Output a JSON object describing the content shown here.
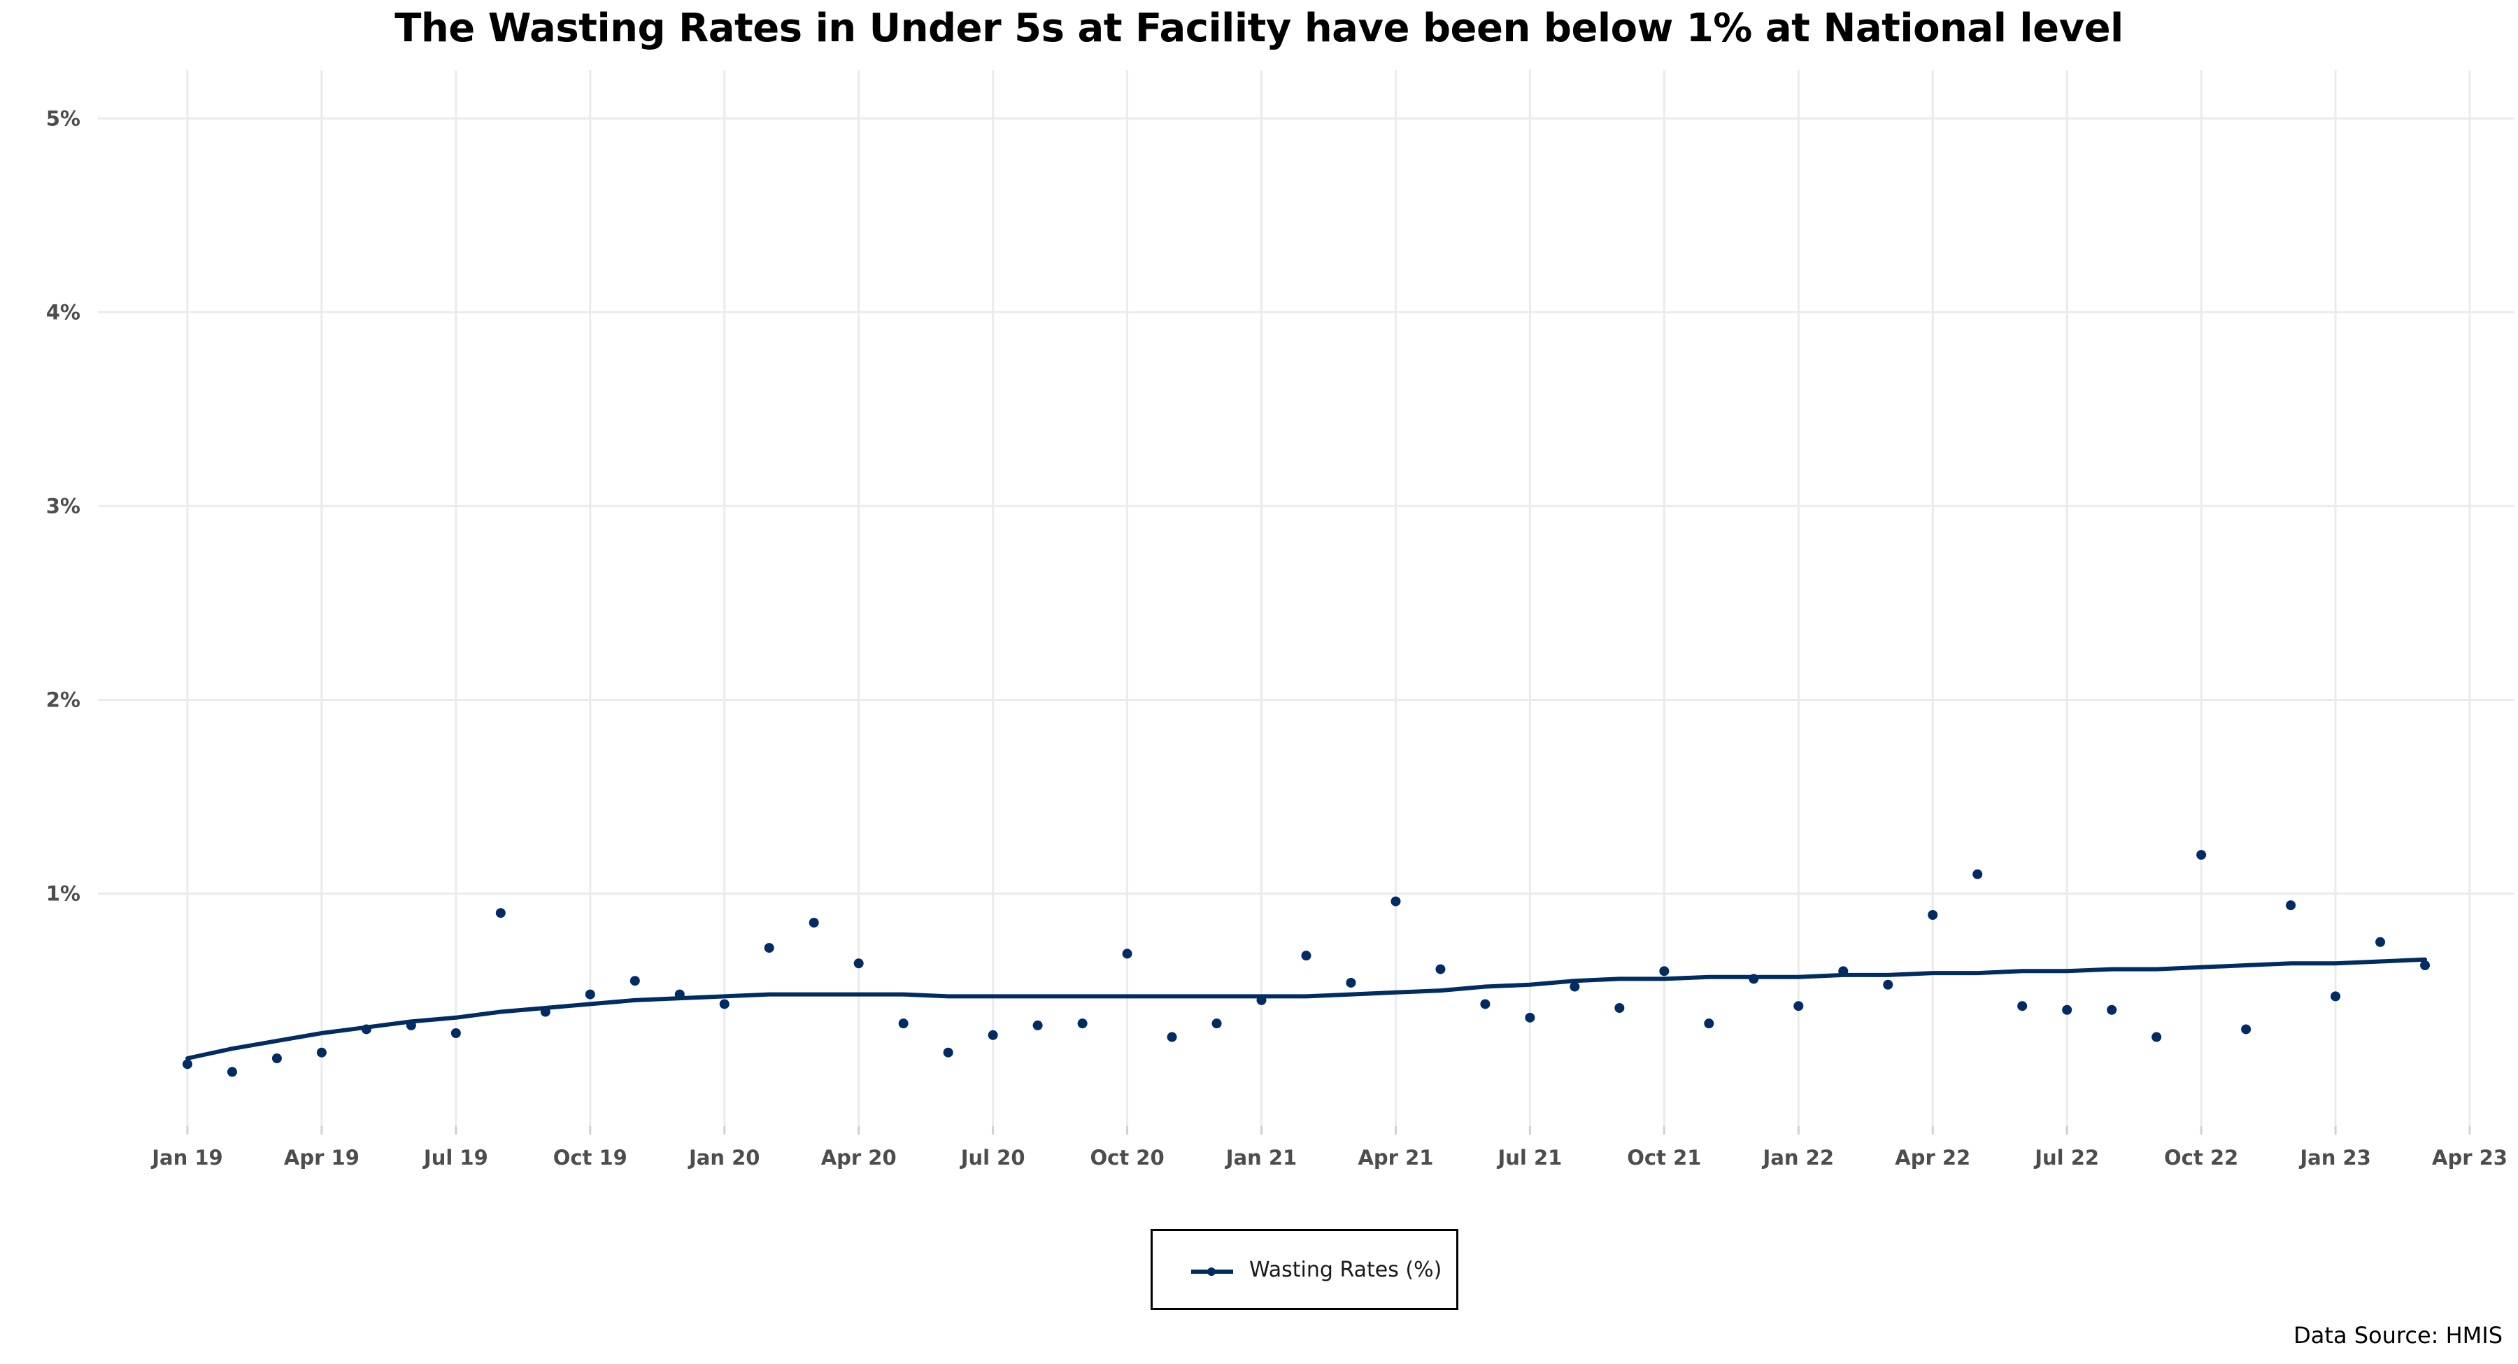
{
  "colors": {
    "series": "#002b63",
    "grid": "#ebebeb",
    "tick_text": "#4d4d4d"
  },
  "footer": {
    "source": "Data Source: HMIS"
  },
  "chart_data": {
    "type": "scatter",
    "title": "The Wasting Rates in Under 5s at Facility have been below 1% at National level",
    "xlabel": "",
    "ylabel": "",
    "x_ticks": [
      "Jan 19",
      "Apr 19",
      "Jul 19",
      "Oct 19",
      "Jan 20",
      "Apr 20",
      "Jul 20",
      "Oct 20",
      "Jan 21",
      "Apr 21",
      "Jul 21",
      "Oct 21",
      "Jan 22",
      "Apr 22",
      "Jul 22",
      "Oct 22",
      "Jan 23",
      "Apr 23"
    ],
    "y_ticks": [
      "1%",
      "2%",
      "3%",
      "4%",
      "5%"
    ],
    "y_tick_values": [
      1,
      2,
      3,
      4,
      5
    ],
    "ylim": [
      -0.2,
      5.25
    ],
    "xlim": [
      "Nov 18",
      "May 23"
    ],
    "grid": true,
    "legend": {
      "position": "bottom",
      "label": "Wasting Rates (%)"
    },
    "series": [
      {
        "name": "Wasting Rates (%)",
        "x": [
          "Jan 19",
          "Feb 19",
          "Mar 19",
          "Apr 19",
          "May 19",
          "Jun 19",
          "Jul 19",
          "Aug 19",
          "Sep 19",
          "Oct 19",
          "Nov 19",
          "Dec 19",
          "Jan 20",
          "Feb 20",
          "Mar 20",
          "Apr 20",
          "May 20",
          "Jun 20",
          "Jul 20",
          "Aug 20",
          "Sep 20",
          "Oct 20",
          "Nov 20",
          "Dec 20",
          "Jan 21",
          "Feb 21",
          "Mar 21",
          "Apr 21",
          "May 21",
          "Jun 21",
          "Jul 21",
          "Aug 21",
          "Sep 21",
          "Oct 21",
          "Nov 21",
          "Dec 21",
          "Jan 22",
          "Feb 22",
          "Mar 22",
          "Apr 22",
          "May 22",
          "Jun 22",
          "Jul 22",
          "Aug 22",
          "Sep 22",
          "Oct 22",
          "Nov 22",
          "Dec 22",
          "Jan 23",
          "Feb 23",
          "Mar 23"
        ],
        "values": [
          0.12,
          0.08,
          0.15,
          0.18,
          0.3,
          0.32,
          0.28,
          0.9,
          0.39,
          0.48,
          0.55,
          0.48,
          0.43,
          0.72,
          0.85,
          0.64,
          0.33,
          0.18,
          0.27,
          0.32,
          0.33,
          0.69,
          0.26,
          0.33,
          0.45,
          0.68,
          0.54,
          0.96,
          0.61,
          0.43,
          0.36,
          0.52,
          0.41,
          0.6,
          0.33,
          0.56,
          0.42,
          0.6,
          0.53,
          0.89,
          1.1,
          0.42,
          0.4,
          0.4,
          0.26,
          1.2,
          0.3,
          0.94,
          0.47,
          0.75,
          0.63
        ],
        "trend": [
          0.15,
          0.2,
          0.24,
          0.28,
          0.31,
          0.34,
          0.36,
          0.39,
          0.41,
          0.43,
          0.45,
          0.46,
          0.47,
          0.48,
          0.48,
          0.48,
          0.48,
          0.47,
          0.47,
          0.47,
          0.47,
          0.47,
          0.47,
          0.47,
          0.47,
          0.47,
          0.48,
          0.49,
          0.5,
          0.52,
          0.53,
          0.55,
          0.56,
          0.56,
          0.57,
          0.57,
          0.57,
          0.58,
          0.58,
          0.59,
          0.59,
          0.6,
          0.6,
          0.61,
          0.61,
          0.62,
          0.63,
          0.64,
          0.64,
          0.65,
          0.66
        ]
      }
    ]
  }
}
